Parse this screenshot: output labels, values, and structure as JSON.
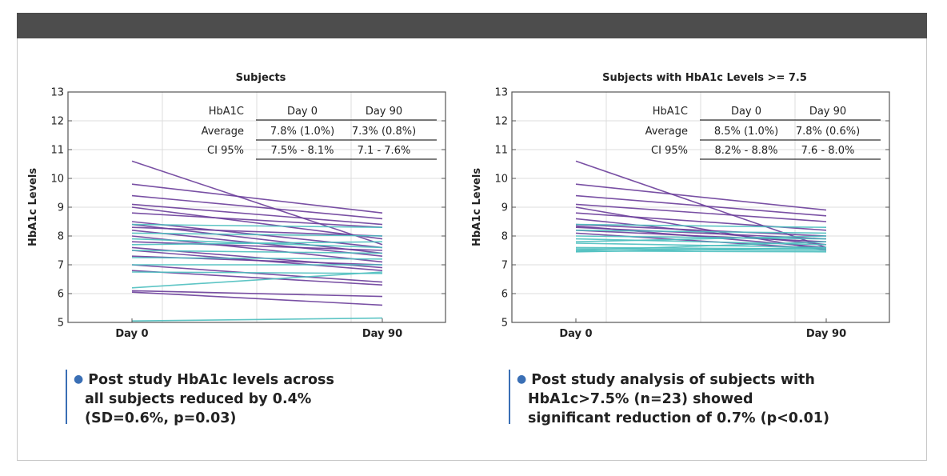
{
  "colors": {
    "purple": "#6a3d9a",
    "teal": "#4dbfbf",
    "bar": "#4d4d4d",
    "accent": "#3a6fb5"
  },
  "chart_data": [
    {
      "type": "line",
      "title": "Subjects",
      "ylabel": "HbA1c Levels",
      "xlabel": "",
      "categories": [
        "Day 0",
        "Day 90"
      ],
      "ylim": [
        5,
        13
      ],
      "yticks": [
        "5",
        "6",
        "7",
        "8",
        "9",
        "10",
        "11",
        "12",
        "13"
      ],
      "grid": true,
      "table": {
        "header": [
          "HbA1C",
          "Day 0",
          "Day 90"
        ],
        "rows": [
          [
            "Average",
            "7.8% (1.0%)",
            "7.3% (0.8%)"
          ],
          [
            "CI 95%",
            "7.5% - 8.1%",
            "7.1 - 7.6%"
          ]
        ]
      },
      "series": [
        {
          "color": "purple",
          "values": [
            10.6,
            7.7
          ]
        },
        {
          "color": "purple",
          "values": [
            9.8,
            8.8
          ]
        },
        {
          "color": "purple",
          "values": [
            9.4,
            8.6
          ]
        },
        {
          "color": "purple",
          "values": [
            9.1,
            8.4
          ]
        },
        {
          "color": "purple",
          "values": [
            9.0,
            7.9
          ]
        },
        {
          "color": "purple",
          "values": [
            8.8,
            8.3
          ]
        },
        {
          "color": "purple",
          "values": [
            8.5,
            7.6
          ]
        },
        {
          "color": "purple",
          "values": [
            8.4,
            7.4
          ]
        },
        {
          "color": "purple",
          "values": [
            8.3,
            8.0
          ]
        },
        {
          "color": "purple",
          "values": [
            8.2,
            7.3
          ]
        },
        {
          "color": "purple",
          "values": [
            8.0,
            7.1
          ]
        },
        {
          "color": "purple",
          "values": [
            7.8,
            7.5
          ]
        },
        {
          "color": "purple",
          "values": [
            7.6,
            6.9
          ]
        },
        {
          "color": "purple",
          "values": [
            7.5,
            6.8
          ]
        },
        {
          "color": "purple",
          "values": [
            7.3,
            7.0
          ]
        },
        {
          "color": "purple",
          "values": [
            7.0,
            6.4
          ]
        },
        {
          "color": "purple",
          "values": [
            6.8,
            6.3
          ]
        },
        {
          "color": "purple",
          "values": [
            6.1,
            5.9
          ]
        },
        {
          "color": "purple",
          "values": [
            6.05,
            5.6
          ]
        },
        {
          "color": "teal",
          "values": [
            8.4,
            8.3
          ]
        },
        {
          "color": "teal",
          "values": [
            8.1,
            8.0
          ]
        },
        {
          "color": "teal",
          "values": [
            7.9,
            7.6
          ]
        },
        {
          "color": "teal",
          "values": [
            7.7,
            7.8
          ]
        },
        {
          "color": "teal",
          "values": [
            7.5,
            7.4
          ]
        },
        {
          "color": "teal",
          "values": [
            7.25,
            7.2
          ]
        },
        {
          "color": "teal",
          "values": [
            7.0,
            7.0
          ]
        },
        {
          "color": "teal",
          "values": [
            6.75,
            6.7
          ]
        },
        {
          "color": "teal",
          "values": [
            6.2,
            6.75
          ]
        },
        {
          "color": "teal",
          "values": [
            5.05,
            5.15
          ]
        }
      ]
    },
    {
      "type": "line",
      "title": "Subjects with HbA1c Levels >= 7.5",
      "ylabel": "HbA1c Levels",
      "xlabel": "",
      "categories": [
        "Day 0",
        "Day 90"
      ],
      "ylim": [
        5,
        13
      ],
      "yticks": [
        "5",
        "6",
        "7",
        "8",
        "9",
        "10",
        "11",
        "12",
        "13"
      ],
      "grid": true,
      "table": {
        "header": [
          "HbA1C",
          "Day 0",
          "Day 90"
        ],
        "rows": [
          [
            "Average",
            "8.5% (1.0%)",
            "7.8% (0.6%)"
          ],
          [
            "CI 95%",
            "8.2% - 8.8%",
            "7.6 - 8.0%"
          ]
        ]
      },
      "series": [
        {
          "color": "purple",
          "values": [
            10.6,
            7.6
          ]
        },
        {
          "color": "purple",
          "values": [
            9.8,
            8.9
          ]
        },
        {
          "color": "purple",
          "values": [
            9.4,
            8.7
          ]
        },
        {
          "color": "purple",
          "values": [
            9.1,
            8.5
          ]
        },
        {
          "color": "purple",
          "values": [
            9.0,
            7.5
          ]
        },
        {
          "color": "purple",
          "values": [
            8.8,
            8.2
          ]
        },
        {
          "color": "purple",
          "values": [
            8.6,
            7.7
          ]
        },
        {
          "color": "purple",
          "values": [
            8.4,
            8.0
          ]
        },
        {
          "color": "purple",
          "values": [
            8.35,
            7.6
          ]
        },
        {
          "color": "purple",
          "values": [
            8.3,
            7.9
          ]
        },
        {
          "color": "purple",
          "values": [
            8.2,
            7.8
          ]
        },
        {
          "color": "purple",
          "values": [
            8.1,
            7.55
          ]
        },
        {
          "color": "teal",
          "values": [
            8.4,
            8.3
          ]
        },
        {
          "color": "teal",
          "values": [
            8.2,
            8.1
          ]
        },
        {
          "color": "teal",
          "values": [
            8.0,
            7.9
          ]
        },
        {
          "color": "teal",
          "values": [
            7.9,
            7.7
          ]
        },
        {
          "color": "teal",
          "values": [
            7.8,
            8.0
          ]
        },
        {
          "color": "teal",
          "values": [
            7.75,
            7.6
          ]
        },
        {
          "color": "teal",
          "values": [
            7.6,
            7.55
          ]
        },
        {
          "color": "teal",
          "values": [
            7.55,
            7.5
          ]
        },
        {
          "color": "teal",
          "values": [
            7.5,
            7.8
          ]
        },
        {
          "color": "teal",
          "values": [
            7.48,
            7.45
          ]
        },
        {
          "color": "teal",
          "values": [
            7.45,
            7.6
          ]
        }
      ]
    }
  ],
  "bullets": {
    "left": {
      "line1": "Post study HbA1c levels across",
      "line2": "all subjects reduced by 0.4%",
      "line3": "(SD=0.6%, p=0.03)"
    },
    "right": {
      "line1": "Post study analysis of subjects with",
      "line2": "HbA1c>7.5% (n=23) showed",
      "line3": "significant reduction of 0.7% (p<0.01)"
    }
  }
}
